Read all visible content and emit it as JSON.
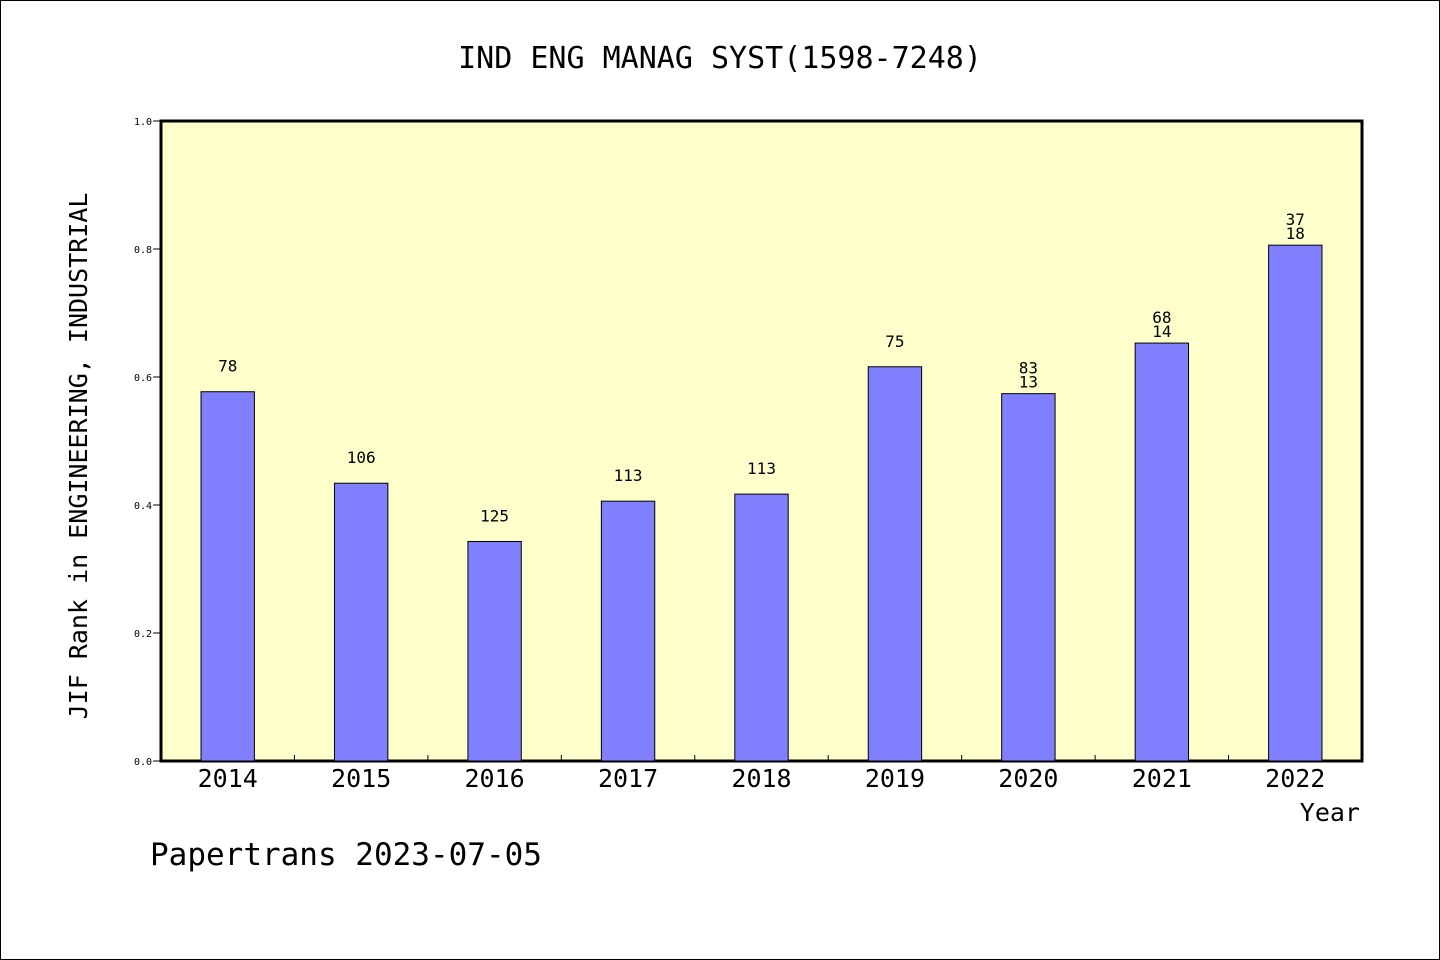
{
  "chart_data": {
    "type": "bar",
    "title": "IND ENG MANAG SYST(1598-7248)",
    "ylabel": "JIF Rank in ENGINEERING, INDUSTRIAL",
    "xlabel": "Year",
    "ylim": [
      0,
      1.0
    ],
    "yticks": [
      "0.0",
      "0.2",
      "0.4",
      "0.6",
      "0.8",
      "1.0"
    ],
    "categories": [
      "2014",
      "2015",
      "2016",
      "2017",
      "2018",
      "2019",
      "2020",
      "2021",
      "2022"
    ],
    "values": [
      0.577,
      0.434,
      0.343,
      0.406,
      0.417,
      0.616,
      0.574,
      0.653,
      0.806
    ],
    "bar_labels": [
      [
        "78"
      ],
      [
        "106"
      ],
      [
        "125"
      ],
      [
        "113"
      ],
      [
        "113"
      ],
      [
        "75"
      ],
      [
        "83",
        "13"
      ],
      [
        "68",
        "14"
      ],
      [
        "37",
        "18"
      ]
    ],
    "grid": false,
    "colors": {
      "plot_background": "#ffffcc",
      "bar_fill": "#8080ff",
      "bar_stroke": "#000000"
    }
  },
  "footer": {
    "credit": "Papertrans 2023-07-05"
  }
}
